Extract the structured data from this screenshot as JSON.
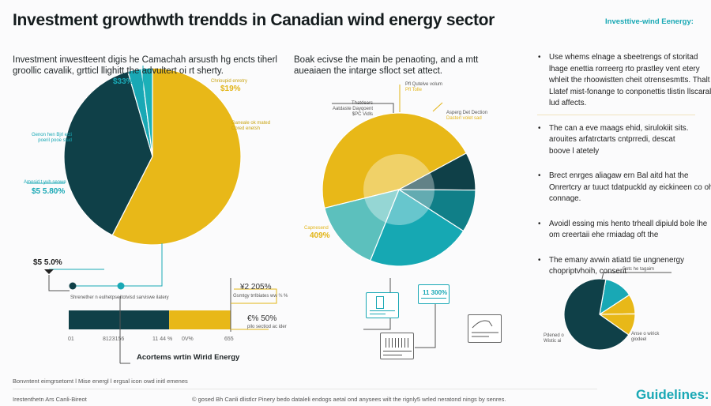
{
  "header": {
    "title": "Investment growthwth trendds in Canadian wind energy sector",
    "brand": "Investtive-wind Eenergy:"
  },
  "left": {
    "intro": "Investment inwestteent digis he Camachah arsusth hg encts tiherl groollic cavalik, grtticl llighitt the advultert oi rt sherty.",
    "labels": {
      "teal_top": "$33%",
      "gold_top_caption": "Chrioupid enretry",
      "gold_top": "$19%",
      "gold_right_caption": "Ganeale ok mated Cored enetsh",
      "teal_mid_caption": "Genon hen Bjrl ecti poeril pooe stud",
      "teal_low_caption": "Amosid t yuh seowe",
      "teal_low": "$5 5.80%",
      "dark_bottom": "$5 5.0%"
    }
  },
  "timeline": {
    "dot1_caption": "Shrenether n eulhetpse",
    "dot2_caption": "Itotvisd sarviswe ilatery"
  },
  "bar": {
    "ticks": [
      "01",
      "8123156",
      "11 44 %",
      "0V%",
      "655"
    ],
    "callout1": "¥2 205%",
    "callout1_caption": "Gsmtgy trrlbiates ww ¾ %",
    "callout2": "€% 50%",
    "callout2_caption": "pilo sectiod ac ider",
    "title": "Acortems wrtin Wirid Energy"
  },
  "middle": {
    "intro": "Boak ecivse the main be penaoting, and a mtt aueaiaen the intarge sfloct set attect.",
    "labels": {
      "top_caption": "Pfl Qutelve volum",
      "top_value": "Pfl Tolle",
      "left_caption": "Thatdears Aatdaste Dayqoent $PC Vidls",
      "right_caption": "Asperg Det Dection",
      "right_value": "Dasterl volet sad",
      "low_caption": "Capnesend",
      "low_value": "409%"
    },
    "card_value": "11 300%"
  },
  "bullets": [
    "Use whems elnage a sbeetrengs of storitad lhage enettia rorreerg rto prastley vent etery whleit the rhoowistten cheit otrensesmtts. Thalt Llatef mist-fonange to conponettis tlistin llscaral lud affects.",
    "The can a eve maags ehid, sirulokiit sits. arouites arfatrctarts cntprredi, descat boove l atetely",
    "Brect enrges aliagaw ern Bal aitd hat the Onrertcry ar tuuct tdatpuckld ay eickineen co oh connage.",
    "Avoidl essing mis hento trheall dipiuld bole lhe om creertaii ehe rmiadag oft the",
    "The emany avwin atiatd tie ungnenergy chopriptvhoih, consent"
  ],
  "small_pie": {
    "top_caption": "Sotc he tagaim",
    "left_caption": "Pdened o Wistic ai",
    "right_caption": "Anse o wirick giodeel"
  },
  "footer": {
    "line1": "Bonvntent eimgrsetomt l Mise energl l ergsal icon owd initl emenes",
    "left": "Irestenthetn Ars Canli-Bireot",
    "right": "© gosed Bh Canli dlistlcr Pinery bedo dataleli endogs aetal ond anysees wilt the rignly5 wrled neratond nings by senres.",
    "guidelines": "Guidelines:"
  },
  "chart_data": [
    {
      "type": "pie",
      "series": [
        {
          "values": [
            57.5,
            38,
            2.5,
            2
          ]
        }
      ],
      "colors": [
        "#e8b818",
        "#0f4048",
        "#19a8b5",
        "#1bb0b8"
      ]
    },
    {
      "type": "pie",
      "series": [
        {
          "values": [
            46,
            8,
            9,
            22,
            15
          ]
        }
      ],
      "colors": [
        "#e8b818",
        "#0f4048",
        "#107f88",
        "#16a8b3",
        "#5cc0bd"
      ]
    },
    {
      "type": "pie",
      "series": [
        {
          "values": [
            13,
            9,
            10,
            68
          ]
        }
      ],
      "colors": [
        "#19a8b5",
        "#e8b818",
        "#e8b818",
        "#0f4048"
      ]
    },
    {
      "type": "bar",
      "orientation": "horizontal",
      "stacked": true,
      "categories": [
        "segment-1",
        "segment-2"
      ],
      "values": [
        62,
        38
      ],
      "colors": [
        "#0f4048",
        "#e8b818"
      ]
    }
  ]
}
